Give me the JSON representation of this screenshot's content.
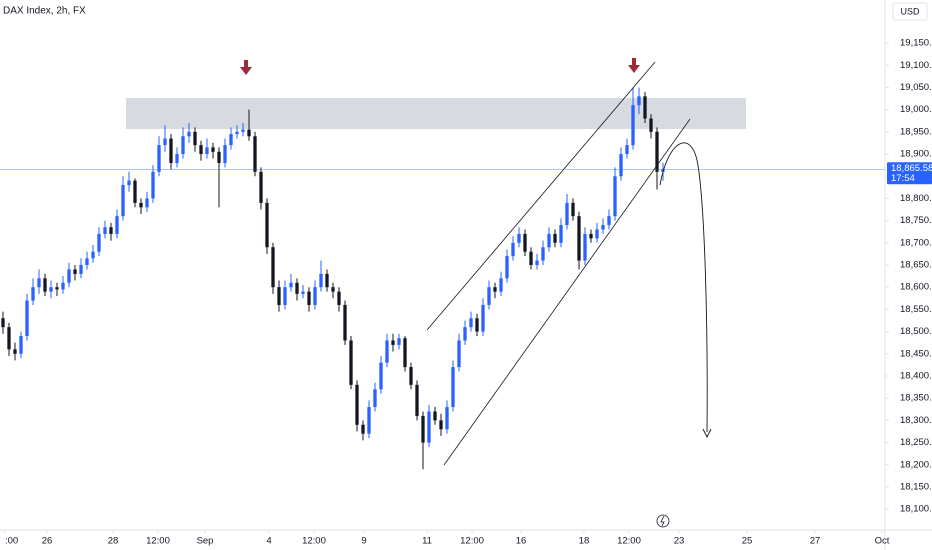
{
  "chart_data": {
    "type": "candlestick",
    "title": "DAX Index, 2h, FX",
    "currency": "USD",
    "up_color": "#2962ff",
    "down_color": "#131722",
    "ylim": [
      18053,
      19247
    ],
    "xlim": [
      -0.5,
      147
    ],
    "yticks": [
      {
        "value": 18100,
        "label": "18,100.00"
      },
      {
        "value": 18150,
        "label": "18,150.00"
      },
      {
        "value": 18200,
        "label": "18,200.00"
      },
      {
        "value": 18250,
        "label": "18,250.00"
      },
      {
        "value": 18300,
        "label": "18,300.00"
      },
      {
        "value": 18350,
        "label": "18,350.00"
      },
      {
        "value": 18400,
        "label": "18,400.00"
      },
      {
        "value": 18450,
        "label": "18,450.00"
      },
      {
        "value": 18500,
        "label": "18,500.00"
      },
      {
        "value": 18550,
        "label": "18,550.00"
      },
      {
        "value": 18600,
        "label": "18,600.00"
      },
      {
        "value": 18650,
        "label": "18,650.00"
      },
      {
        "value": 18700,
        "label": "18,700.00"
      },
      {
        "value": 18750,
        "label": "18,750.00"
      },
      {
        "value": 18800,
        "label": "18,800.00"
      },
      {
        "value": 18850,
        "label": "18,850.00"
      },
      {
        "value": 18900,
        "label": "18,900.00"
      },
      {
        "value": 18950,
        "label": "18,950.00"
      },
      {
        "value": 19000,
        "label": "19,000.00"
      },
      {
        "value": 19050,
        "label": "19,050.00"
      },
      {
        "value": 19100,
        "label": "19,100.00"
      },
      {
        "value": 19150,
        "label": "19,150.00"
      }
    ],
    "xticks": [
      {
        "value": 0.33,
        "label": ":00"
      },
      {
        "value": 7.33,
        "label": "26"
      },
      {
        "value": 18.33,
        "label": "28"
      },
      {
        "value": 25.83,
        "label": "12:00"
      },
      {
        "value": 33.67,
        "label": "Sep"
      },
      {
        "value": 44.33,
        "label": "4"
      },
      {
        "value": 51.83,
        "label": "12:00"
      },
      {
        "value": 60.17,
        "label": "9"
      },
      {
        "value": 70.67,
        "label": "11"
      },
      {
        "value": 78.17,
        "label": "12:00"
      },
      {
        "value": 86.33,
        "label": "16"
      },
      {
        "value": 96.83,
        "label": "18"
      },
      {
        "value": 104.33,
        "label": "12:00"
      },
      {
        "value": 112.67,
        "label": "23"
      },
      {
        "value": 124,
        "label": "25"
      },
      {
        "value": 135.33,
        "label": "27"
      },
      {
        "value": 146.5,
        "label": "Oct"
      }
    ],
    "current_price": {
      "value": 18865.58,
      "label": "18,865.58"
    },
    "countdown": "17:54",
    "ohlc": [
      [
        18530,
        18545,
        18495,
        18510
      ],
      [
        18510,
        18520,
        18445,
        18460
      ],
      [
        18460,
        18475,
        18435,
        18450
      ],
      [
        18450,
        18500,
        18440,
        18490
      ],
      [
        18490,
        18585,
        18480,
        18570
      ],
      [
        18570,
        18620,
        18560,
        18600
      ],
      [
        18600,
        18640,
        18585,
        18620
      ],
      [
        18620,
        18630,
        18580,
        18590
      ],
      [
        18590,
        18615,
        18575,
        18600
      ],
      [
        18600,
        18610,
        18580,
        18595
      ],
      [
        18595,
        18625,
        18585,
        18610
      ],
      [
        18610,
        18655,
        18600,
        18640
      ],
      [
        18640,
        18650,
        18615,
        18630
      ],
      [
        18630,
        18665,
        18620,
        18650
      ],
      [
        18650,
        18680,
        18640,
        18665
      ],
      [
        18665,
        18695,
        18655,
        18680
      ],
      [
        18680,
        18735,
        18670,
        18720
      ],
      [
        18720,
        18750,
        18710,
        18735
      ],
      [
        18735,
        18745,
        18705,
        18720
      ],
      [
        18720,
        18775,
        18710,
        18760
      ],
      [
        18760,
        18850,
        18750,
        18830
      ],
      [
        18830,
        18860,
        18815,
        18840
      ],
      [
        18840,
        18845,
        18780,
        18790
      ],
      [
        18790,
        18800,
        18765,
        18780
      ],
      [
        18780,
        18815,
        18770,
        18800
      ],
      [
        18800,
        18875,
        18790,
        18860
      ],
      [
        18860,
        18940,
        18850,
        18920
      ],
      [
        18920,
        18965,
        18905,
        18935
      ],
      [
        18935,
        18945,
        18865,
        18880
      ],
      [
        18880,
        18915,
        18870,
        18900
      ],
      [
        18900,
        18960,
        18890,
        18940
      ],
      [
        18940,
        18970,
        18925,
        18950
      ],
      [
        18950,
        18960,
        18905,
        18920
      ],
      [
        18920,
        18930,
        18885,
        18900
      ],
      [
        18900,
        18935,
        18890,
        18915
      ],
      [
        18915,
        18925,
        18890,
        18905
      ],
      [
        18905,
        18915,
        18780,
        18880
      ],
      [
        18880,
        18935,
        18870,
        18920
      ],
      [
        18920,
        18960,
        18910,
        18945
      ],
      [
        18945,
        18965,
        18935,
        18950
      ],
      [
        18950,
        18970,
        18940,
        18955
      ],
      [
        18955,
        19000,
        18930,
        18940
      ],
      [
        18940,
        18950,
        18850,
        18860
      ],
      [
        18860,
        18870,
        18775,
        18790
      ],
      [
        18790,
        18800,
        18675,
        18690
      ],
      [
        18690,
        18700,
        18585,
        18600
      ],
      [
        18600,
        18615,
        18545,
        18560
      ],
      [
        18560,
        18615,
        18550,
        18600
      ],
      [
        18600,
        18630,
        18590,
        18610
      ],
      [
        18610,
        18620,
        18570,
        18585
      ],
      [
        18585,
        18605,
        18575,
        18590
      ],
      [
        18590,
        18600,
        18545,
        18560
      ],
      [
        18560,
        18615,
        18550,
        18600
      ],
      [
        18600,
        18660,
        18590,
        18630
      ],
      [
        18630,
        18640,
        18590,
        18600
      ],
      [
        18600,
        18610,
        18575,
        18590
      ],
      [
        18590,
        18600,
        18545,
        18560
      ],
      [
        18560,
        18570,
        18470,
        18480
      ],
      [
        18480,
        18490,
        18370,
        18380
      ],
      [
        18380,
        18390,
        18275,
        18290
      ],
      [
        18290,
        18300,
        18255,
        18270
      ],
      [
        18270,
        18345,
        18260,
        18330
      ],
      [
        18330,
        18385,
        18320,
        18370
      ],
      [
        18370,
        18445,
        18360,
        18430
      ],
      [
        18430,
        18495,
        18420,
        18480
      ],
      [
        18480,
        18495,
        18455,
        18470
      ],
      [
        18470,
        18495,
        18460,
        18485
      ],
      [
        18485,
        18490,
        18410,
        18420
      ],
      [
        18420,
        18430,
        18370,
        18380
      ],
      [
        18380,
        18390,
        18300,
        18310
      ],
      [
        18310,
        18320,
        18190,
        18250
      ],
      [
        18250,
        18335,
        18240,
        18320
      ],
      [
        18320,
        18330,
        18290,
        18300
      ],
      [
        18300,
        18315,
        18265,
        18280
      ],
      [
        18280,
        18345,
        18270,
        18330
      ],
      [
        18330,
        18435,
        18320,
        18420
      ],
      [
        18420,
        18495,
        18410,
        18480
      ],
      [
        18480,
        18525,
        18470,
        18510
      ],
      [
        18510,
        18545,
        18500,
        18530
      ],
      [
        18530,
        18540,
        18490,
        18500
      ],
      [
        18500,
        18575,
        18490,
        18560
      ],
      [
        18560,
        18615,
        18550,
        18600
      ],
      [
        18600,
        18610,
        18575,
        18590
      ],
      [
        18590,
        18635,
        18580,
        18620
      ],
      [
        18620,
        18685,
        18610,
        18670
      ],
      [
        18670,
        18715,
        18660,
        18700
      ],
      [
        18700,
        18735,
        18690,
        18720
      ],
      [
        18720,
        18730,
        18670,
        18680
      ],
      [
        18680,
        18690,
        18640,
        18650
      ],
      [
        18650,
        18675,
        18640,
        18660
      ],
      [
        18660,
        18705,
        18650,
        18690
      ],
      [
        18690,
        18735,
        18680,
        18720
      ],
      [
        18720,
        18730,
        18690,
        18700
      ],
      [
        18700,
        18755,
        18690,
        18740
      ],
      [
        18740,
        18810,
        18730,
        18790
      ],
      [
        18790,
        18800,
        18750,
        18760
      ],
      [
        18760,
        18770,
        18640,
        18660
      ],
      [
        18660,
        18735,
        18650,
        18720
      ],
      [
        18720,
        18730,
        18700,
        18710
      ],
      [
        18710,
        18745,
        18700,
        18730
      ],
      [
        18730,
        18755,
        18720,
        18740
      ],
      [
        18740,
        18775,
        18730,
        18760
      ],
      [
        18760,
        18870,
        18750,
        18850
      ],
      [
        18850,
        18915,
        18840,
        18900
      ],
      [
        18900,
        18935,
        18890,
        18920
      ],
      [
        18920,
        19050,
        18910,
        19010
      ],
      [
        19010,
        19050,
        18990,
        19030
      ],
      [
        19030,
        19040,
        18970,
        18980
      ],
      [
        18980,
        18990,
        18935,
        18950
      ],
      [
        18950,
        18960,
        18820,
        18860
      ],
      [
        18860,
        18880,
        18840,
        18866
      ]
    ]
  }
}
